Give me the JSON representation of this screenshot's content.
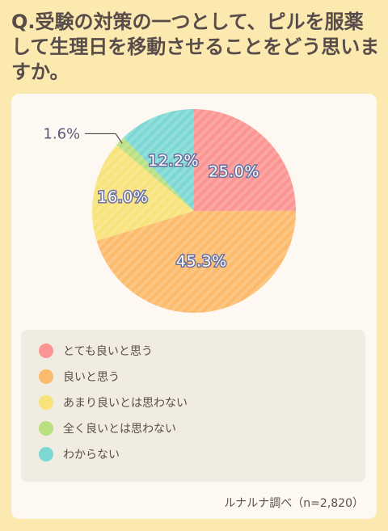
{
  "question": "Q.受験の対策の一つとして、ピルを服薬して生理日を移動させることをどう思いますか。",
  "source": "ルナルナ調べ（n=2,820）",
  "chart_data": {
    "type": "pie",
    "title": "",
    "categories": [
      "とても良いと思う",
      "良いと思う",
      "あまり良いとは思わない",
      "全く良いとは思わない",
      "わからない"
    ],
    "values": [
      25.0,
      45.3,
      16.0,
      1.6,
      12.2
    ],
    "labels": [
      "25.0%",
      "45.3%",
      "16.0%",
      "1.6%",
      "12.2%"
    ],
    "colors": [
      "#fb9593",
      "#fcbb6c",
      "#f8e27a",
      "#b9e07f",
      "#7dd8d4"
    ],
    "start": "12 o'clock",
    "direction": "clockwise",
    "legend_position": "bottom"
  }
}
